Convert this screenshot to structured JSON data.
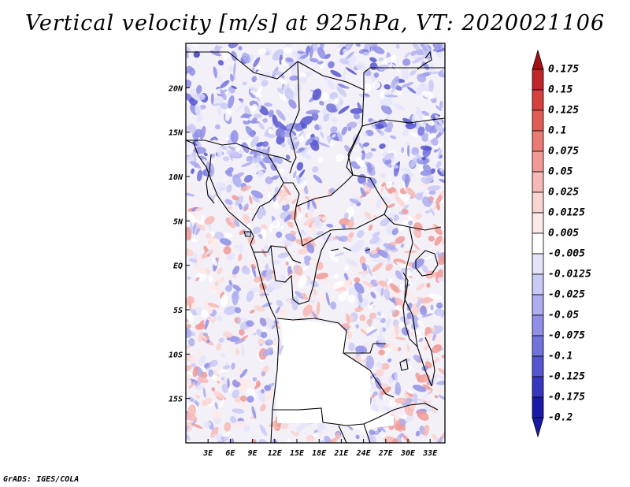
{
  "title": "Vertical velocity [m/s] at 925hPa, VT: 2020021106",
  "credit": "GrADS: IGES/COLA",
  "map": {
    "lat_range": [
      -20,
      25
    ],
    "lon_range": [
      0,
      35
    ],
    "lat_ticks": [
      {
        "value": 20,
        "label": "20N"
      },
      {
        "value": 15,
        "label": "15N"
      },
      {
        "value": 10,
        "label": "10N"
      },
      {
        "value": 5,
        "label": "5N"
      },
      {
        "value": 0,
        "label": "EQ"
      },
      {
        "value": -5,
        "label": "5S"
      },
      {
        "value": -10,
        "label": "10S"
      },
      {
        "value": -15,
        "label": "15S"
      }
    ],
    "lon_ticks": [
      {
        "value": 3,
        "label": "3E"
      },
      {
        "value": 6,
        "label": "6E"
      },
      {
        "value": 9,
        "label": "9E"
      },
      {
        "value": 12,
        "label": "12E"
      },
      {
        "value": 15,
        "label": "15E"
      },
      {
        "value": 18,
        "label": "18E"
      },
      {
        "value": 21,
        "label": "21E"
      },
      {
        "value": 24,
        "label": "24E"
      },
      {
        "value": 27,
        "label": "27E"
      },
      {
        "value": 30,
        "label": "30E"
      },
      {
        "value": 33,
        "label": "33E"
      }
    ]
  },
  "colorbar": {
    "levels": [
      {
        "label": "0.175",
        "color": "#a50f15"
      },
      {
        "label": "0.15",
        "color": "#c0252a"
      },
      {
        "label": "0.125",
        "color": "#d6403d"
      },
      {
        "label": "0.1",
        "color": "#e25c56"
      },
      {
        "label": "0.075",
        "color": "#ea7a74"
      },
      {
        "label": "0.05",
        "color": "#f09a95"
      },
      {
        "label": "0.025",
        "color": "#f6b9b5"
      },
      {
        "label": "0.0125",
        "color": "#fad4d1"
      },
      {
        "label": "0.005",
        "color": "#fdeae8"
      },
      {
        "label": "-0.005",
        "color": "#ffffff"
      },
      {
        "label": "-0.0125",
        "color": "#e4e4fb"
      },
      {
        "label": "-0.025",
        "color": "#c9c9f5"
      },
      {
        "label": "-0.05",
        "color": "#adadef"
      },
      {
        "label": "-0.075",
        "color": "#8f8fe6"
      },
      {
        "label": "-0.1",
        "color": "#7272dc"
      },
      {
        "label": "-0.125",
        "color": "#5555cf"
      },
      {
        "label": "-0.175",
        "color": "#3636bf"
      },
      {
        "label": "-0.2",
        "color": "#1a1aa8"
      }
    ],
    "over_color": "#a50f15",
    "under_color": "#1a1aa8"
  }
}
